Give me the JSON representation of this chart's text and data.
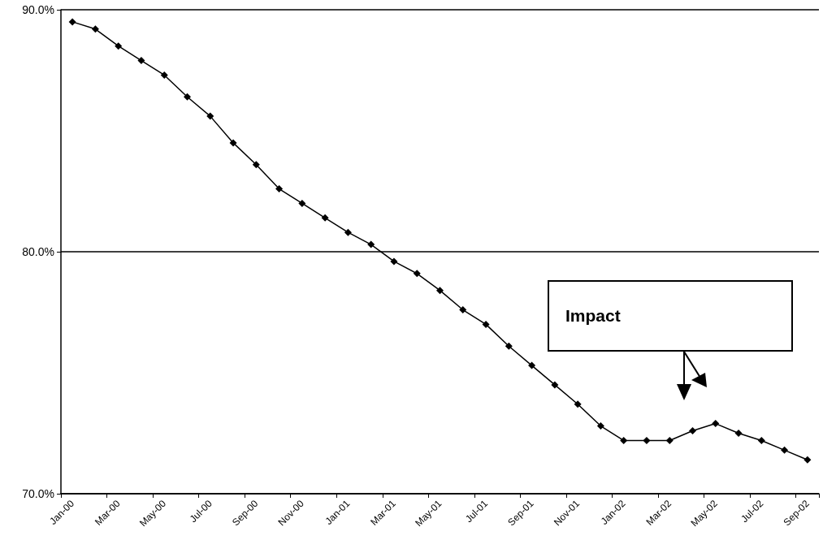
{
  "chart_data": {
    "type": "line",
    "categories": [
      "Jan-00",
      null,
      "Mar-00",
      null,
      "May-00",
      null,
      "Jul-00",
      null,
      "Sep-00",
      null,
      "Nov-00",
      null,
      "Jan-01",
      null,
      "Mar-01",
      null,
      "May-01",
      null,
      "Jul-01",
      null,
      "Sep-01",
      null,
      "Nov-01",
      null,
      "Jan-02",
      null,
      "Mar-02",
      null,
      "May-02",
      null,
      "Jul-02",
      null,
      "Sep-02"
    ],
    "series": [
      {
        "color": "#000000",
        "values": [
          89.5,
          89.2,
          88.5,
          87.9,
          87.3,
          86.4,
          85.6,
          84.5,
          83.6,
          82.6,
          82.0,
          81.4,
          80.8,
          80.3,
          79.6,
          79.1,
          78.4,
          77.6,
          77.0,
          76.1,
          75.3,
          74.5,
          73.7,
          72.8,
          72.2,
          72.2,
          72.2,
          72.6,
          72.9,
          72.5,
          72.2,
          71.8,
          71.4
        ]
      }
    ],
    "ylim": [
      70,
      90
    ],
    "yticks": [
      {
        "value": 70,
        "label": "70.0%"
      },
      {
        "value": 80,
        "label": "80.0%"
      },
      {
        "value": 90,
        "label": "90.0%"
      }
    ],
    "grid": "y",
    "marker": "diamond",
    "line_style": "solid",
    "annotations": [
      "Impact"
    ]
  }
}
